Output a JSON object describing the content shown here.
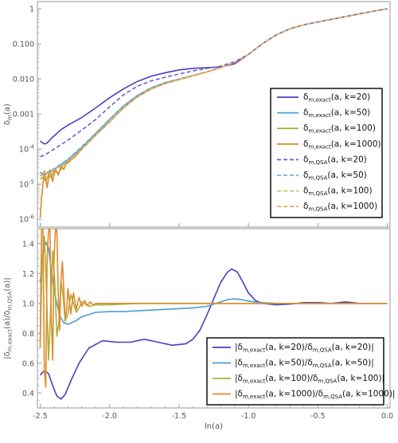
{
  "chart_data": [
    {
      "type": "line",
      "panel": "top",
      "xlabel": "",
      "ylabel": "δm(a)",
      "yscale": "log",
      "xlim": [
        -2.52,
        0.02
      ],
      "ylim": [
        6e-07,
        1.6
      ],
      "y_ticks": [
        1e-06,
        1e-05,
        0.0001,
        0.001,
        0.01,
        0.1,
        1
      ],
      "y_tick_labels": [
        "10^-6",
        "10^-5",
        "10^-4",
        "0.001",
        "0.010",
        "0.100",
        "1"
      ],
      "grid": false,
      "legend_position": "right",
      "legend": [
        {
          "main": "δ",
          "sub": "m,exact",
          "rest": "(a, k=20)"
        },
        {
          "main": "δ",
          "sub": "m,exact",
          "rest": "(a, k=50)"
        },
        {
          "main": "δ",
          "sub": "m,exact",
          "rest": "(a, k=100)"
        },
        {
          "main": "δ",
          "sub": "m,exact",
          "rest": "(a, k=1000)"
        },
        {
          "main": "δ",
          "sub": "m,QSA",
          "rest": "(a, k=20)"
        },
        {
          "main": "δ",
          "sub": "m,QSA",
          "rest": "(a, k=50)"
        },
        {
          "main": "δ",
          "sub": "m,QSA",
          "rest": "(a, k=100)"
        },
        {
          "main": "δ",
          "sub": "m,QSA",
          "rest": "(a, k=1000)"
        }
      ],
      "series": [
        {
          "dash": false,
          "color": "#4a3fc2",
          "x": [
            -2.5,
            -2.47,
            -2.45,
            -2.42,
            -2.38,
            -2.35,
            -2.3,
            -2.2,
            -2.1,
            -2.0,
            -1.9,
            -1.8,
            -1.7,
            -1.6,
            -1.5,
            -1.4,
            -1.3,
            -1.2,
            -1.1,
            -1.0,
            -0.9,
            -0.8,
            -0.7,
            -0.6,
            -0.5,
            -0.4,
            -0.3,
            -0.2,
            -0.1,
            0.0
          ],
          "y": [
            0.00017,
            0.00014,
            0.00015,
            0.0002,
            0.00028,
            0.00036,
            0.00048,
            0.0008,
            0.0015,
            0.0029,
            0.0052,
            0.0085,
            0.012,
            0.015,
            0.018,
            0.02,
            0.021,
            0.022,
            0.027,
            0.05,
            0.1,
            0.18,
            0.27,
            0.35,
            0.42,
            0.5,
            0.6,
            0.72,
            0.85,
            1.0
          ]
        },
        {
          "dash": false,
          "color": "#4a9fcd",
          "x": [
            -2.5,
            -2.47,
            -2.44,
            -2.4,
            -2.35,
            -2.3,
            -2.2,
            -2.1,
            -2.0,
            -1.9,
            -1.8,
            -1.7,
            -1.6,
            -1.5,
            -1.4,
            -1.3,
            -1.2,
            -1.1,
            -1.0,
            -0.9,
            -0.8,
            -0.7,
            -0.6,
            -0.5,
            -0.4,
            -0.3,
            -0.2,
            -0.1,
            0.0
          ],
          "y": [
            2.2e-05,
            1.9e-05,
            2e-05,
            2.6e-05,
            3.6e-05,
            5e-05,
            0.00011,
            0.00028,
            0.0007,
            0.0017,
            0.0034,
            0.0056,
            0.0079,
            0.0099,
            0.0125,
            0.016,
            0.021,
            0.03,
            0.05,
            0.1,
            0.18,
            0.27,
            0.35,
            0.42,
            0.5,
            0.6,
            0.72,
            0.85,
            1.0
          ]
        },
        {
          "dash": false,
          "color": "#a5b43a",
          "x": [
            -2.5,
            -2.48,
            -2.46,
            -2.44,
            -2.42,
            -2.4,
            -2.37,
            -2.33,
            -2.3,
            -2.25,
            -2.2,
            -2.1,
            -2.0,
            -1.9,
            -1.8,
            -1.7,
            -1.6,
            -1.5,
            -1.4,
            -1.3,
            -1.2,
            -1.1,
            -1.0,
            -0.9,
            -0.8,
            -0.7,
            -0.6,
            -0.5,
            -0.4,
            -0.3,
            -0.2,
            -0.1,
            0.0
          ],
          "y": [
            1.4e-05,
            1.6e-05,
            1.2e-05,
            1.9e-05,
            1.5e-05,
            2.5e-05,
            2e-05,
            3.7e-05,
            4e-05,
            6.5e-05,
            0.0001,
            0.00025,
            0.0006,
            0.0015,
            0.0031,
            0.0052,
            0.0074,
            0.0096,
            0.0123,
            0.0158,
            0.021,
            0.03,
            0.05,
            0.1,
            0.18,
            0.27,
            0.35,
            0.42,
            0.5,
            0.6,
            0.72,
            0.85,
            1.0
          ]
        },
        {
          "dash": false,
          "color": "#e08a2a",
          "x": [
            -2.5,
            -2.49,
            -2.47,
            -2.45,
            -2.43,
            -2.41,
            -2.39,
            -2.37,
            -2.35,
            -2.33,
            -2.31,
            -2.29,
            -2.25,
            -2.2,
            -2.1,
            -2.0,
            -1.9,
            -1.8,
            -1.7,
            -1.6,
            -1.5,
            -1.4,
            -1.3,
            -1.2,
            -1.1,
            -1.0,
            -0.9,
            -0.8,
            -0.7,
            -0.6,
            -0.5,
            -0.4,
            -0.3,
            -0.2,
            -0.1,
            0.0
          ],
          "y": [
            1.1e-06,
            4e-06,
            2.4e-05,
            8e-06,
            2.6e-05,
            1.2e-05,
            2.8e-05,
            1.8e-05,
            3.3e-05,
            2.6e-05,
            4.2e-05,
            4.5e-05,
            6e-05,
            0.0001,
            0.00025,
            0.0006,
            0.0015,
            0.0031,
            0.0052,
            0.0074,
            0.0096,
            0.0123,
            0.0158,
            0.021,
            0.03,
            0.05,
            0.1,
            0.18,
            0.27,
            0.35,
            0.42,
            0.5,
            0.6,
            0.72,
            0.85,
            1.0
          ]
        },
        {
          "dash": true,
          "color": "#6a5fd0",
          "x": [
            -2.5,
            -2.45,
            -2.4,
            -2.3,
            -2.2,
            -2.1,
            -2.0,
            -1.9,
            -1.8,
            -1.7,
            -1.6,
            -1.5,
            -1.4,
            -1.3,
            -1.2,
            -1.1,
            -1.0,
            -0.9,
            -0.8,
            -0.7,
            -0.6,
            -0.5,
            -0.4,
            -0.3,
            -0.2,
            -0.1,
            0.0
          ],
          "y": [
            6e-05,
            7.5e-05,
            0.0001,
            0.00018,
            0.00035,
            0.0007,
            0.0016,
            0.0035,
            0.0062,
            0.0088,
            0.0112,
            0.0138,
            0.0168,
            0.0198,
            0.023,
            0.031,
            0.05,
            0.1,
            0.18,
            0.27,
            0.35,
            0.42,
            0.5,
            0.6,
            0.72,
            0.85,
            1.0
          ]
        },
        {
          "dash": true,
          "color": "#6fb6dd",
          "x": [
            -2.5,
            -2.45,
            -2.4,
            -2.3,
            -2.2,
            -2.1,
            -2.0,
            -1.9,
            -1.8,
            -1.7,
            -1.6,
            -1.5,
            -1.4,
            -1.3,
            -1.2,
            -1.1,
            -1.0,
            -0.9,
            -0.8,
            -0.7,
            -0.6,
            -0.5,
            -0.4,
            -0.3,
            -0.2,
            -0.1,
            0.0
          ],
          "y": [
            1.8e-05,
            2.2e-05,
            2.8e-05,
            5.2e-05,
            0.00012,
            0.00029,
            0.00072,
            0.0017,
            0.0034,
            0.0056,
            0.0079,
            0.0099,
            0.0125,
            0.016,
            0.021,
            0.03,
            0.05,
            0.1,
            0.18,
            0.27,
            0.35,
            0.42,
            0.5,
            0.6,
            0.72,
            0.85,
            1.0
          ]
        },
        {
          "dash": true,
          "color": "#c3cc6a",
          "x": [
            -2.5,
            -2.45,
            -2.4,
            -2.3,
            -2.2,
            -2.1,
            -2.0,
            -1.9,
            -1.8,
            -1.7,
            -1.6,
            -1.5,
            -1.4,
            -1.3,
            -1.2,
            -1.1,
            -1.0,
            -0.9,
            -0.8,
            -0.7,
            -0.6,
            -0.5,
            -0.4,
            -0.3,
            -0.2,
            -0.1,
            0.0
          ],
          "y": [
            1.7e-05,
            2e-05,
            2.5e-05,
            4.5e-05,
            0.0001,
            0.00025,
            0.0006,
            0.0015,
            0.0031,
            0.0052,
            0.0074,
            0.0096,
            0.0123,
            0.0158,
            0.021,
            0.03,
            0.05,
            0.1,
            0.18,
            0.27,
            0.35,
            0.42,
            0.5,
            0.6,
            0.72,
            0.85,
            1.0
          ]
        },
        {
          "dash": true,
          "color": "#efaa66",
          "x": [
            -2.5,
            -2.45,
            -2.4,
            -2.3,
            -2.2,
            -2.1,
            -2.0,
            -1.9,
            -1.8,
            -1.7,
            -1.6,
            -1.5,
            -1.4,
            -1.3,
            -1.2,
            -1.1,
            -1.0,
            -0.9,
            -0.8,
            -0.7,
            -0.6,
            -0.5,
            -0.4,
            -0.3,
            -0.2,
            -0.1,
            0.0
          ],
          "y": [
            1.7e-05,
            2e-05,
            2.5e-05,
            4.5e-05,
            0.0001,
            0.00025,
            0.0006,
            0.0015,
            0.0031,
            0.0052,
            0.0074,
            0.0096,
            0.0123,
            0.0158,
            0.021,
            0.03,
            0.05,
            0.1,
            0.18,
            0.27,
            0.35,
            0.42,
            0.5,
            0.6,
            0.72,
            0.85,
            1.0
          ]
        }
      ]
    },
    {
      "type": "line",
      "panel": "bottom",
      "xlabel": "ln(a)",
      "ylabel": "|δm,exact(a)/δm,QSA(a)|",
      "xlim": [
        -2.52,
        0.02
      ],
      "ylim": [
        0.3,
        1.5
      ],
      "x_ticks": [
        -2.5,
        -2.0,
        -1.5,
        -1.0,
        -0.5,
        0.0
      ],
      "x_tick_labels": [
        "-2.5",
        "-2.0",
        "-1.5",
        "-1.0",
        "-0.5",
        "0.0"
      ],
      "y_ticks": [
        0.4,
        0.6,
        0.8,
        1.0,
        1.2,
        1.4
      ],
      "y_tick_labels": [
        "0.4",
        "0.6",
        "0.8",
        "1.0",
        "1.2",
        "1.4"
      ],
      "grid": false,
      "legend_position": "bottom-right",
      "legend": [
        {
          "parts": [
            [
              "|δ",
              "m,exact"
            ],
            [
              "(a, k=20)/δ",
              "m,QSA"
            ],
            [
              "(a, k=20)|",
              ""
            ]
          ]
        },
        {
          "parts": [
            [
              "|δ",
              "m,exact"
            ],
            [
              "(a, k=50)/δ",
              "m,QSA"
            ],
            [
              "(a, k=50)|",
              ""
            ]
          ]
        },
        {
          "parts": [
            [
              "|δ",
              "m,exact"
            ],
            [
              "(a, k=100)/δ",
              "m,QSA"
            ],
            [
              "(a, k=100)|",
              ""
            ]
          ]
        },
        {
          "parts": [
            [
              "|δ",
              "m,exact"
            ],
            [
              "(a, k=1000)/δ",
              "m,QSA"
            ],
            [
              "(a, k=1000)|",
              ""
            ]
          ]
        }
      ],
      "series": [
        {
          "color": "#4a3fc2",
          "x": [
            -2.5,
            -2.47,
            -2.44,
            -2.41,
            -2.38,
            -2.35,
            -2.32,
            -2.28,
            -2.22,
            -2.15,
            -2.05,
            -1.95,
            -1.85,
            -1.75,
            -1.65,
            -1.55,
            -1.45,
            -1.4,
            -1.35,
            -1.3,
            -1.25,
            -1.2,
            -1.15,
            -1.12,
            -1.08,
            -1.05,
            -1.0,
            -0.95,
            -0.9,
            -0.8,
            -0.7,
            -0.6,
            -0.5,
            -0.4,
            -0.3,
            -0.2,
            -0.1,
            0.0
          ],
          "y": [
            0.52,
            0.55,
            0.53,
            0.45,
            0.38,
            0.36,
            0.39,
            0.48,
            0.6,
            0.7,
            0.75,
            0.74,
            0.74,
            0.76,
            0.74,
            0.72,
            0.73,
            0.76,
            0.82,
            0.92,
            1.03,
            1.14,
            1.21,
            1.23,
            1.21,
            1.16,
            1.07,
            1.02,
            1.0,
            0.99,
            0.995,
            1.005,
            1.005,
            1.0,
            1.01,
            1.0,
            1.0,
            1.0
          ]
        },
        {
          "color": "#4a9fcd",
          "x": [
            -2.5,
            -2.48,
            -2.46,
            -2.44,
            -2.42,
            -2.39,
            -2.36,
            -2.33,
            -2.3,
            -2.25,
            -2.2,
            -2.1,
            -2.0,
            -1.9,
            -1.8,
            -1.7,
            -1.6,
            -1.5,
            -1.4,
            -1.3,
            -1.2,
            -1.15,
            -1.1,
            -1.05,
            -1.0,
            -0.9,
            -0.8,
            -0.7,
            -0.6,
            -0.5,
            -0.4,
            -0.3,
            -0.2,
            -0.1,
            0.0
          ],
          "y": [
            1.14,
            1.33,
            1.41,
            1.37,
            1.22,
            1.04,
            0.92,
            0.87,
            0.86,
            0.88,
            0.91,
            0.94,
            0.945,
            0.945,
            0.95,
            0.955,
            0.96,
            0.965,
            0.97,
            0.98,
            1.01,
            1.025,
            1.03,
            1.025,
            1.015,
            1.005,
            1.0,
            1.0,
            1.0,
            1.0,
            1.0,
            1.0,
            1.0,
            1.0,
            1.0
          ]
        },
        {
          "color": "#a5b43a",
          "x": [
            -2.5,
            -2.485,
            -2.47,
            -2.455,
            -2.44,
            -2.425,
            -2.41,
            -2.395,
            -2.38,
            -2.365,
            -2.35,
            -2.335,
            -2.32,
            -2.3,
            -2.28,
            -2.26,
            -2.24,
            -2.22,
            -2.2,
            -2.15,
            -2.1,
            -2.0,
            -1.9,
            -1.8,
            -1.6,
            -1.4,
            -1.2,
            -1.0,
            -0.8,
            -0.6,
            -0.4,
            -0.2,
            0.0
          ],
          "y": [
            0.75,
            1.3,
            1.45,
            1.1,
            0.62,
            0.95,
            1.35,
            1.15,
            0.78,
            0.88,
            1.15,
            1.05,
            0.88,
            0.93,
            1.06,
            1.0,
            0.94,
            0.97,
            1.01,
            0.98,
            0.99,
            0.99,
            0.995,
            1.0,
            1.0,
            1.0,
            1.0,
            1.0,
            1.0,
            1.0,
            1.0,
            1.0,
            1.0
          ]
        },
        {
          "color": "#e08a2a",
          "x": [
            -2.5,
            -2.49,
            -2.48,
            -2.47,
            -2.46,
            -2.45,
            -2.44,
            -2.43,
            -2.42,
            -2.41,
            -2.4,
            -2.39,
            -2.38,
            -2.37,
            -2.36,
            -2.35,
            -2.34,
            -2.33,
            -2.32,
            -2.31,
            -2.3,
            -2.28,
            -2.26,
            -2.24,
            -2.22,
            -2.2,
            -2.18,
            -2.16,
            -2.14,
            -2.12,
            -2.1,
            -2.05,
            -2.0,
            -1.9,
            -1.7,
            -1.5,
            -1.3,
            -1.1,
            -0.9,
            -0.7,
            -0.5,
            -0.3,
            -0.1,
            0.0
          ],
          "y": [
            0.7,
            1.5,
            1.5,
            0.55,
            0.44,
            1.3,
            1.5,
            1.5,
            0.9,
            0.62,
            1.3,
            1.5,
            1.5,
            1.05,
            0.82,
            1.15,
            1.28,
            1.1,
            0.9,
            0.95,
            1.1,
            0.93,
            1.07,
            0.96,
            1.04,
            0.98,
            1.02,
            0.985,
            1.01,
            0.99,
            1.0,
            1.0,
            1.0,
            1.0,
            1.0,
            1.0,
            1.0,
            1.0,
            1.0,
            1.0,
            1.0,
            1.0,
            1.0,
            1.0
          ]
        }
      ]
    }
  ]
}
